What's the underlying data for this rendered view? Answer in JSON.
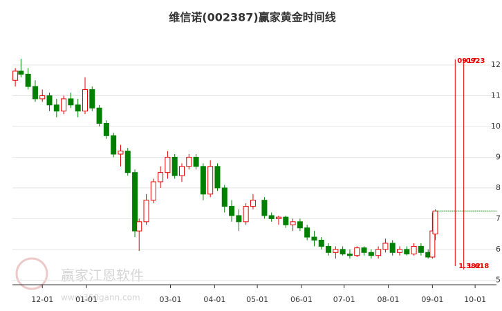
{
  "chart_data": {
    "type": "candlestick",
    "title": "维信诺(002387)赢家黄金时间线",
    "x": [
      "11-12",
      "11-16",
      "11-21",
      "11-26",
      "12-01",
      "12-06",
      "12-11",
      "12-16",
      "12-21",
      "12-26",
      "12-31",
      "01-05",
      "01-10",
      "01-15",
      "01-20",
      "01-25",
      "01-30",
      "02-04",
      "02-07",
      "02-12",
      "02-17",
      "02-22",
      "02-27",
      "03-04",
      "03-09",
      "03-14",
      "03-19",
      "03-24",
      "03-29",
      "04-03",
      "04-08",
      "04-13",
      "04-18",
      "04-23",
      "04-28",
      "05-06",
      "05-11",
      "05-16",
      "05-21",
      "05-26",
      "05-31",
      "06-05",
      "06-10",
      "06-15",
      "06-20",
      "06-25",
      "06-30",
      "07-05",
      "07-10",
      "07-15",
      "07-20",
      "07-25",
      "07-30",
      "08-04",
      "08-09",
      "08-14",
      "08-19",
      "08-24",
      "08-29",
      "09-01",
      "09-03"
    ],
    "open": [
      11.5,
      11.8,
      11.7,
      11.3,
      10.9,
      11.0,
      10.7,
      10.5,
      10.9,
      10.7,
      10.5,
      11.2,
      10.6,
      10.1,
      9.7,
      9.1,
      9.2,
      8.5,
      6.6,
      6.9,
      7.6,
      8.2,
      8.5,
      9.0,
      8.4,
      8.7,
      9.0,
      8.7,
      7.8,
      8.7,
      8.0,
      7.4,
      7.1,
      6.9,
      7.4,
      7.6,
      7.1,
      7.0,
      7.05,
      6.8,
      6.9,
      6.7,
      6.4,
      6.3,
      6.1,
      5.9,
      6.0,
      5.85,
      5.8,
      6.05,
      5.9,
      5.8,
      6.0,
      6.2,
      5.9,
      6.0,
      5.85,
      6.1,
      5.9,
      5.75,
      6.5
    ],
    "high": [
      11.9,
      12.2,
      11.9,
      11.5,
      11.2,
      11.1,
      10.9,
      11.0,
      11.1,
      10.9,
      11.6,
      11.3,
      10.7,
      10.2,
      9.8,
      9.4,
      9.3,
      8.6,
      7.0,
      7.8,
      8.3,
      8.7,
      9.2,
      9.1,
      8.8,
      9.1,
      9.1,
      8.8,
      8.9,
      8.8,
      8.1,
      7.6,
      7.3,
      7.5,
      7.8,
      7.7,
      7.2,
      7.1,
      7.1,
      7.0,
      7.0,
      6.8,
      6.6,
      6.4,
      6.2,
      6.1,
      6.1,
      6.0,
      6.1,
      6.1,
      6.0,
      6.1,
      6.35,
      6.3,
      6.1,
      6.1,
      6.2,
      6.2,
      6.0,
      7.2,
      7.3
    ],
    "low": [
      11.3,
      11.6,
      11.2,
      10.8,
      10.8,
      10.5,
      10.3,
      10.4,
      10.6,
      10.3,
      10.4,
      10.5,
      10.0,
      9.6,
      9.0,
      8.7,
      8.4,
      6.4,
      5.95,
      6.8,
      7.5,
      8.0,
      8.3,
      8.3,
      8.2,
      8.6,
      8.6,
      7.6,
      7.7,
      7.9,
      7.2,
      6.9,
      6.6,
      6.8,
      7.3,
      7.0,
      6.9,
      6.8,
      6.7,
      6.6,
      6.6,
      6.3,
      6.1,
      6.0,
      5.8,
      5.7,
      5.8,
      5.7,
      5.75,
      5.8,
      5.7,
      5.7,
      5.9,
      5.8,
      5.8,
      5.8,
      5.8,
      5.8,
      5.7,
      5.7,
      6.3
    ],
    "close": [
      11.8,
      11.7,
      11.3,
      10.9,
      11.0,
      10.7,
      10.5,
      10.9,
      10.7,
      10.5,
      11.2,
      10.6,
      10.1,
      9.7,
      9.1,
      9.2,
      8.5,
      6.6,
      6.9,
      7.6,
      8.2,
      8.5,
      9.0,
      8.4,
      8.7,
      9.0,
      8.7,
      7.8,
      8.7,
      8.0,
      7.4,
      7.1,
      6.9,
      7.4,
      7.6,
      7.1,
      7.0,
      7.05,
      6.8,
      6.9,
      6.7,
      6.4,
      6.3,
      6.1,
      5.9,
      6.0,
      5.85,
      5.8,
      6.05,
      5.9,
      5.8,
      6.0,
      6.2,
      5.9,
      6.0,
      5.85,
      6.1,
      5.9,
      5.75,
      6.6,
      7.25
    ],
    "up_color": "#e60000",
    "down_color": "#008000",
    "xlim": [
      "11-10",
      "10-16"
    ],
    "xticks": [
      "12-01",
      "01-01",
      "03-01",
      "04-01",
      "05-01",
      "06-01",
      "07-01",
      "08-01",
      "09-01",
      "10-01"
    ],
    "ylim": [
      4.85,
      12.9
    ],
    "yticks": [
      5,
      6,
      7,
      8,
      9,
      10,
      11,
      12
    ],
    "grid": true,
    "reference_line": {
      "value": 7.25,
      "from": "09-03",
      "color": "#008000"
    },
    "time_lines": [
      {
        "date": "09-17",
        "label": "0917",
        "ratio": 1.382
      },
      {
        "date": "09-23",
        "label": "0923",
        "ratio": 1.618
      }
    ],
    "time_line_color": "#e60000",
    "watermark": {
      "text": "赢家江恩软件",
      "url": "www.360gann.com"
    }
  }
}
